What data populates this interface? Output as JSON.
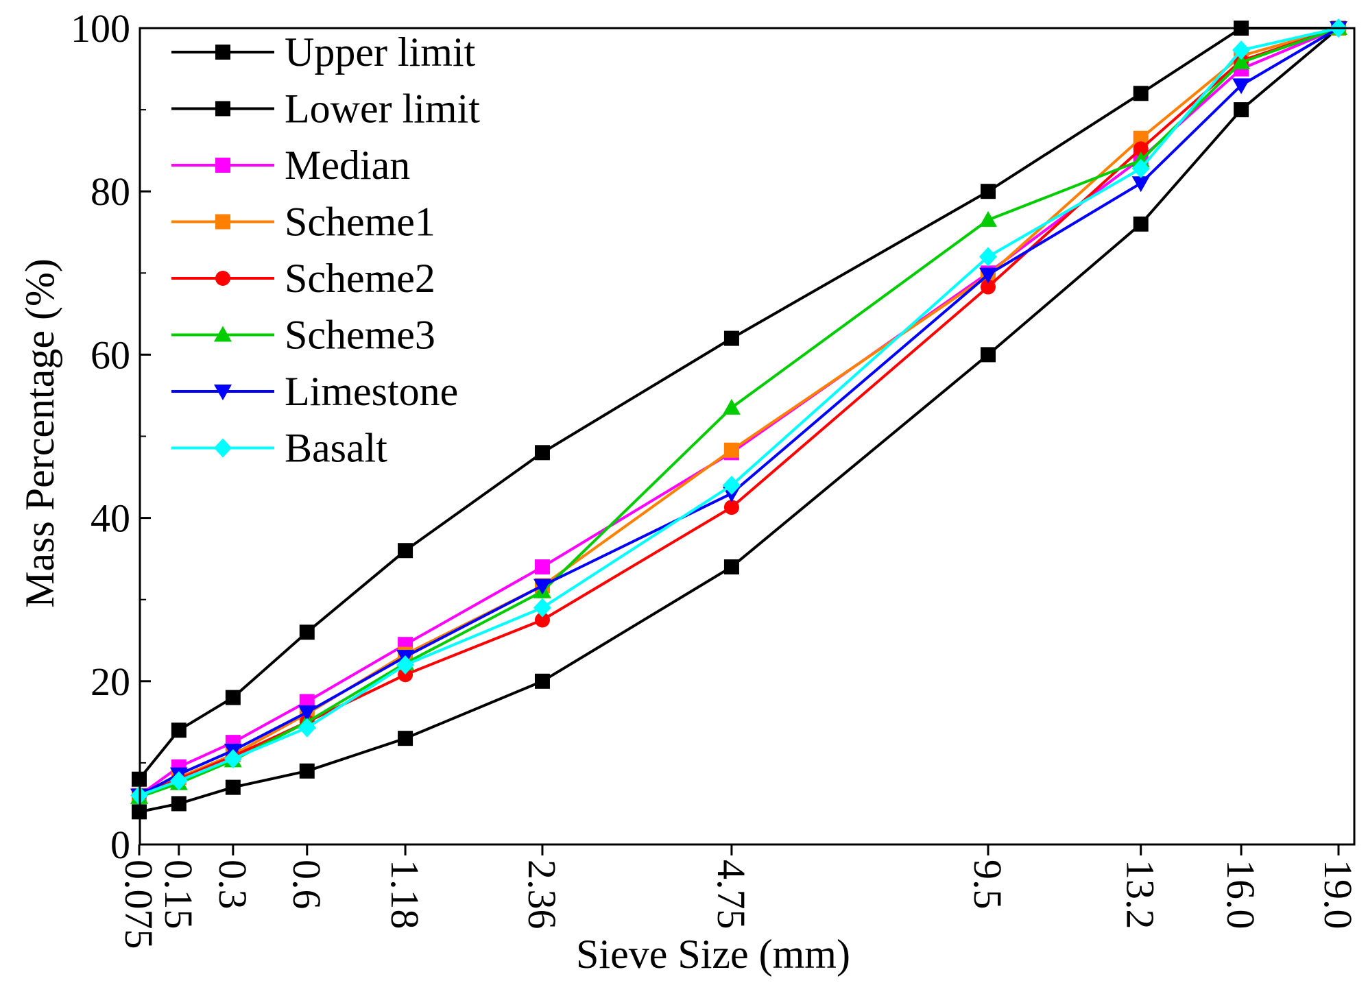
{
  "chart_data": {
    "type": "line",
    "title": "",
    "xlabel": "Sieve Size (mm)",
    "ylabel": "Mass Percentage (%)",
    "x": [
      "0.075",
      "0.15",
      "0.3",
      "0.6",
      "1.18",
      "2.36",
      "4.75",
      "9.5",
      "13.2",
      "16.0",
      "19.0"
    ],
    "x_scale": "power 0.45 (sieve size)",
    "ylim": [
      0,
      100
    ],
    "yticks": [
      "0",
      "20",
      "40",
      "60",
      "80",
      "100"
    ],
    "grid": false,
    "legend_position": "top-left",
    "series": [
      {
        "name": "Upper limit",
        "color": "#000000",
        "marker": "square",
        "values": [
          8,
          14,
          18,
          26,
          36,
          48,
          62,
          80,
          92,
          100,
          100
        ]
      },
      {
        "name": "Lower limit",
        "color": "#000000",
        "marker": "square",
        "values": [
          4,
          5,
          7,
          9,
          13,
          20,
          34,
          60,
          76,
          90,
          100
        ]
      },
      {
        "name": "Median",
        "color": "#ff00ff",
        "marker": "square",
        "values": [
          6,
          9.5,
          12.5,
          17.5,
          24.5,
          34,
          48,
          70,
          84,
          95,
          100
        ]
      },
      {
        "name": "Scheme1",
        "color": "#ff8000",
        "marker": "square",
        "values": [
          6,
          8.2,
          11,
          16,
          23.3,
          31.7,
          48.3,
          69.7,
          86.5,
          96.6,
          100
        ]
      },
      {
        "name": "Scheme2",
        "color": "#ff0000",
        "marker": "circle",
        "values": [
          6,
          8,
          10.8,
          15,
          20.8,
          27.5,
          41.3,
          68.3,
          85.2,
          96,
          100
        ]
      },
      {
        "name": "Scheme3",
        "color": "#00cc00",
        "marker": "triangle-up",
        "values": [
          5.8,
          7.5,
          10.3,
          15,
          22.2,
          31,
          53.5,
          76.5,
          83.8,
          95.8,
          100
        ]
      },
      {
        "name": "Limestone",
        "color": "#0000ff",
        "marker": "triangle-down",
        "values": [
          6,
          8.6,
          11.5,
          16.2,
          23,
          31.7,
          43,
          69.8,
          81,
          93,
          100
        ]
      },
      {
        "name": "Basalt",
        "color": "#00ffff",
        "marker": "diamond",
        "values": [
          6,
          7.8,
          10.5,
          14.3,
          22,
          29,
          44,
          72,
          82.8,
          97.3,
          100
        ]
      }
    ]
  }
}
